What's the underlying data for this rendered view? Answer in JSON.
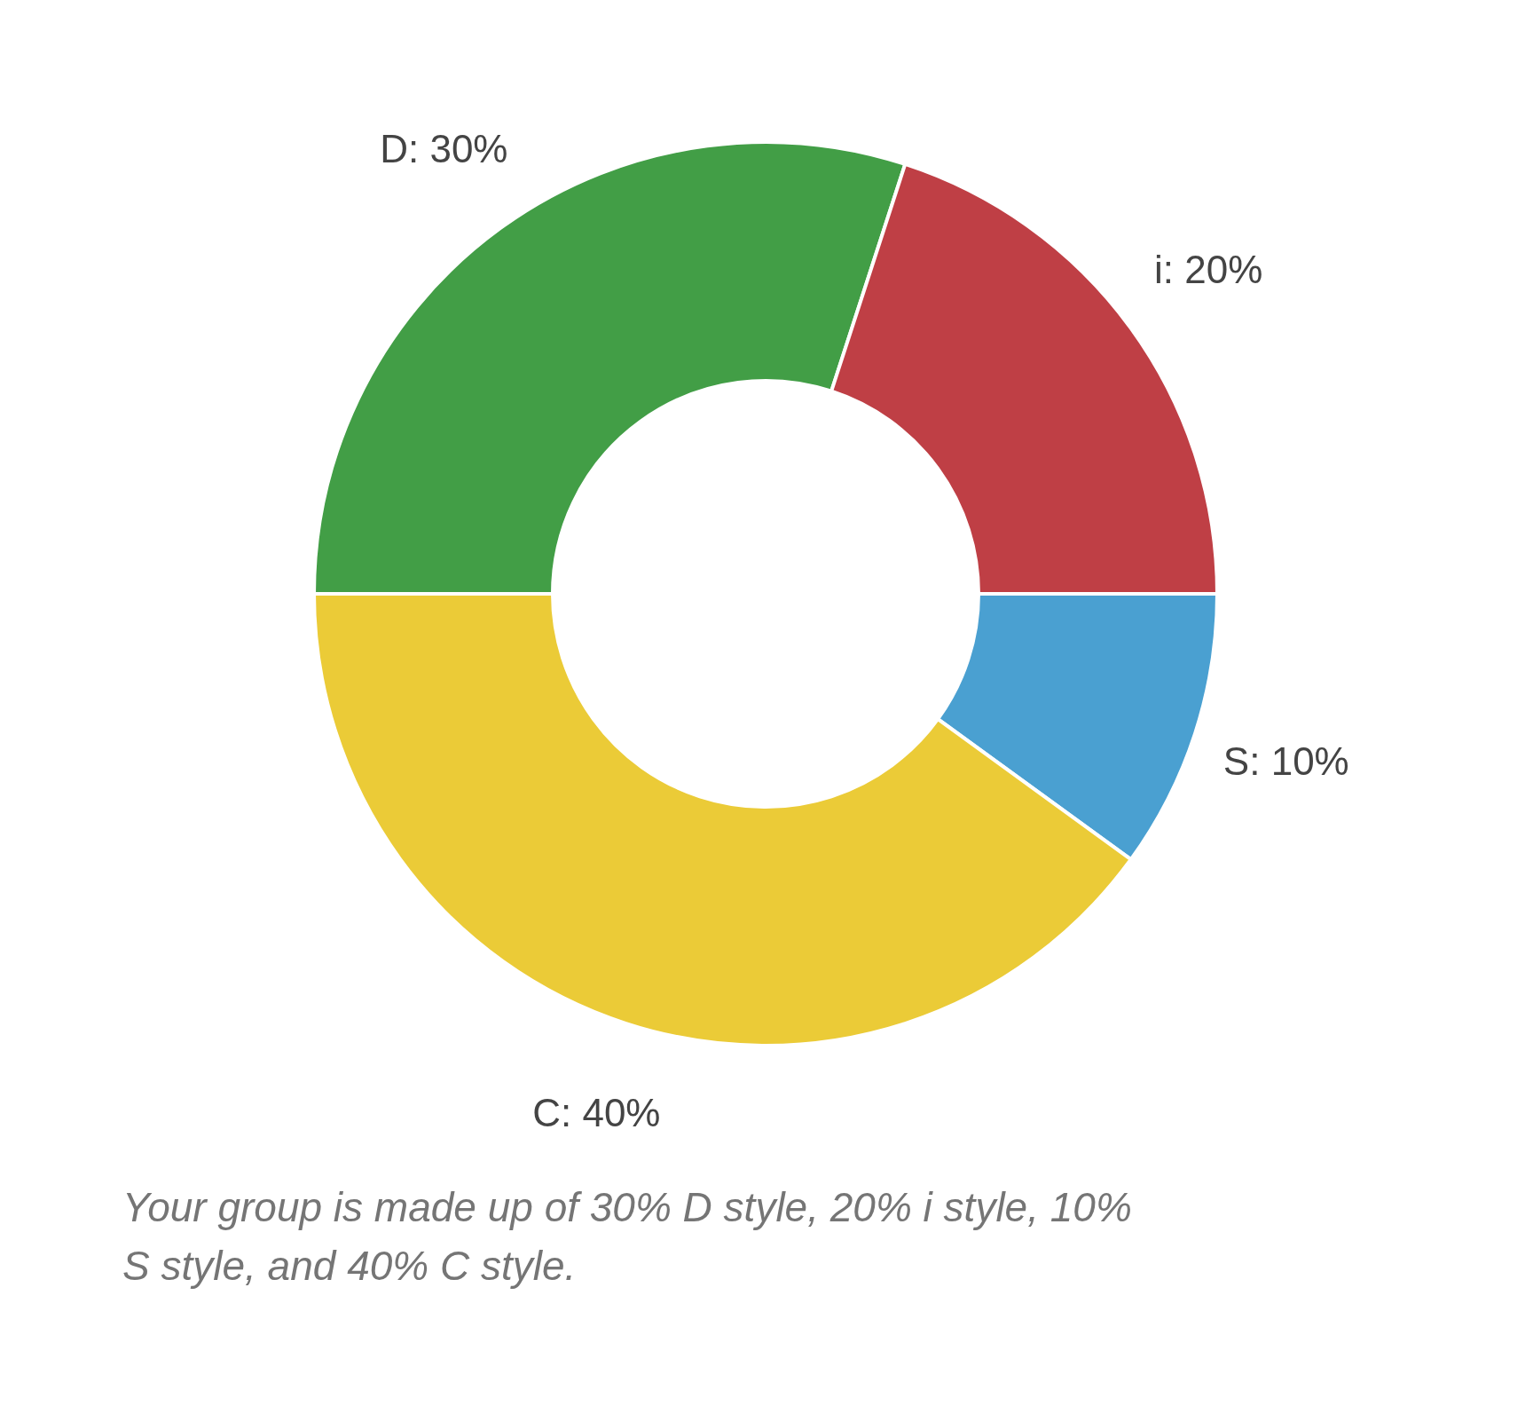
{
  "chart_data": {
    "type": "donut",
    "categories": [
      "D",
      "i",
      "S",
      "C"
    ],
    "values": [
      30,
      20,
      10,
      40
    ],
    "colors": [
      "#429e46",
      "#bf3f45",
      "#4aa0d1",
      "#ebcb37"
    ],
    "value_labels": [
      "30%",
      "20%",
      "10%",
      "40%"
    ],
    "annotations": [
      "Your group is made up of 30% D style, 20% i style, 10% S style, and 40% C style."
    ]
  }
}
